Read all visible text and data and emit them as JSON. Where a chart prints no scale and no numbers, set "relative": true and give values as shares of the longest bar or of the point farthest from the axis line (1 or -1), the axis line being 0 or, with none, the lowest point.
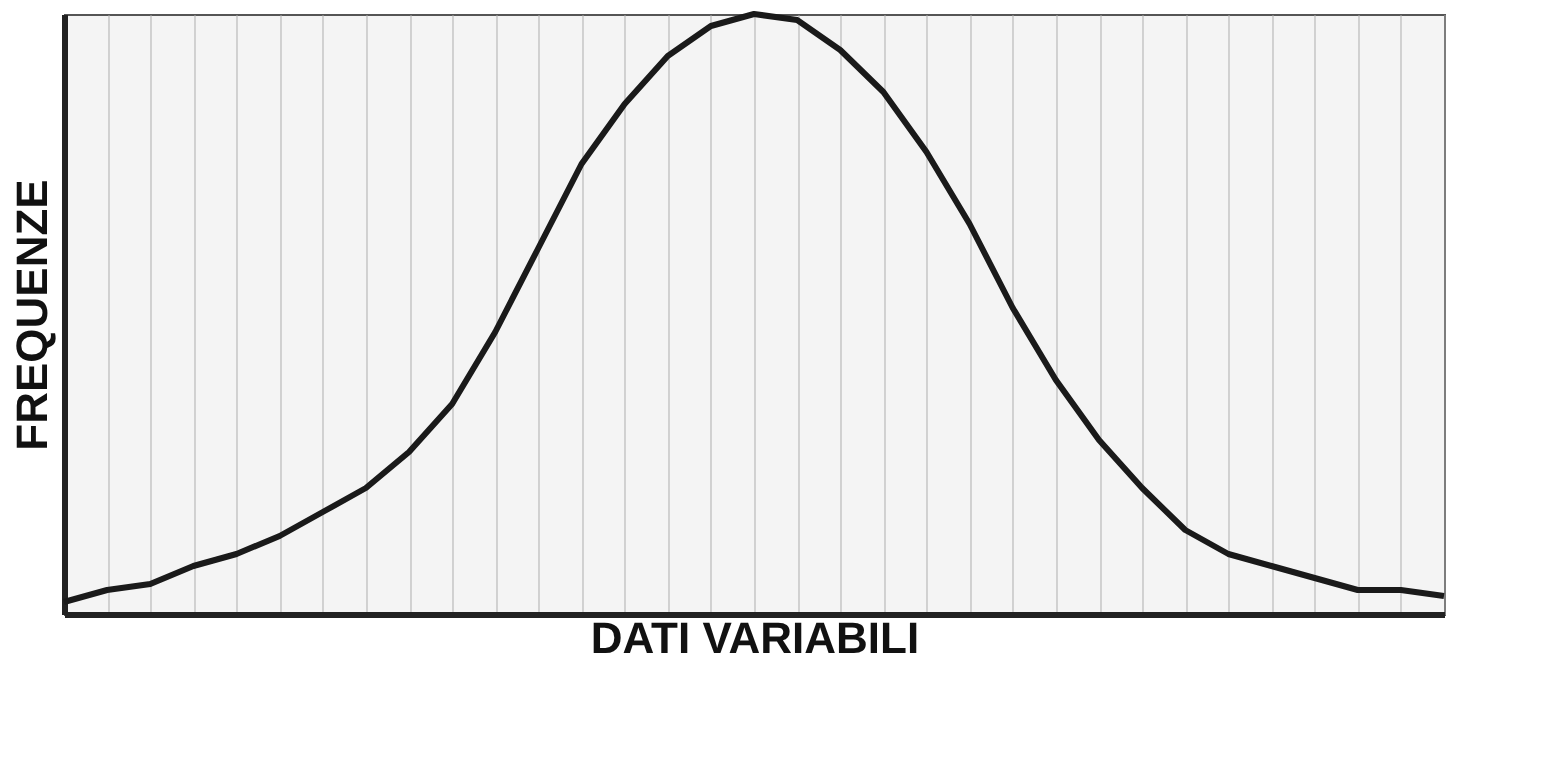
{
  "chart_data": {
    "type": "line",
    "relative": true,
    "xlabel": "DATI VARIABILI",
    "ylabel": "FREQUENZE",
    "grid": "x",
    "line_style": "solid",
    "marker": "none",
    "categories": [
      null,
      null,
      null,
      null,
      null,
      null,
      null,
      null,
      null,
      null,
      null,
      null,
      null,
      null,
      null,
      null,
      null,
      null,
      null,
      null,
      null,
      null,
      null,
      null,
      null,
      null,
      null,
      null,
      null,
      null,
      null,
      null,
      null
    ],
    "series": [
      {
        "color": "#1a1a1a",
        "values": [
          0.02,
          0.04,
          0.05,
          0.08,
          0.1,
          0.13,
          0.17,
          0.21,
          0.27,
          0.35,
          0.47,
          0.61,
          0.75,
          0.85,
          0.93,
          0.98,
          1,
          0.99,
          0.94,
          0.87,
          0.77,
          0.65,
          0.51,
          0.39,
          0.29,
          0.21,
          0.14,
          0.1,
          0.08,
          0.06,
          0.04,
          0.04,
          0.03
        ]
      }
    ]
  }
}
